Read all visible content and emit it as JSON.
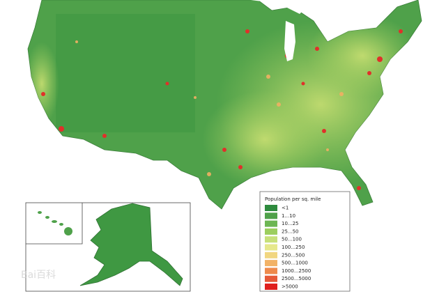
{
  "legend": {
    "title": "Population per sq. mile",
    "items": [
      {
        "label": "<1",
        "color": "#2e8b3e"
      },
      {
        "label": "1...10",
        "color": "#4fa14a"
      },
      {
        "label": "10...25",
        "color": "#6cb653"
      },
      {
        "label": "25...50",
        "color": "#9cce5e"
      },
      {
        "label": "50...100",
        "color": "#c7e07a"
      },
      {
        "label": "100...250",
        "color": "#e6e88c"
      },
      {
        "label": "250...500",
        "color": "#f1d680"
      },
      {
        "label": "500...1000",
        "color": "#f2b266"
      },
      {
        "label": "1000...2500",
        "color": "#ee8a4c"
      },
      {
        "label": "2500...5000",
        "color": "#e65a38"
      },
      {
        "label": ">5000",
        "color": "#e0201e"
      }
    ]
  },
  "watermark": "Bai百科"
}
